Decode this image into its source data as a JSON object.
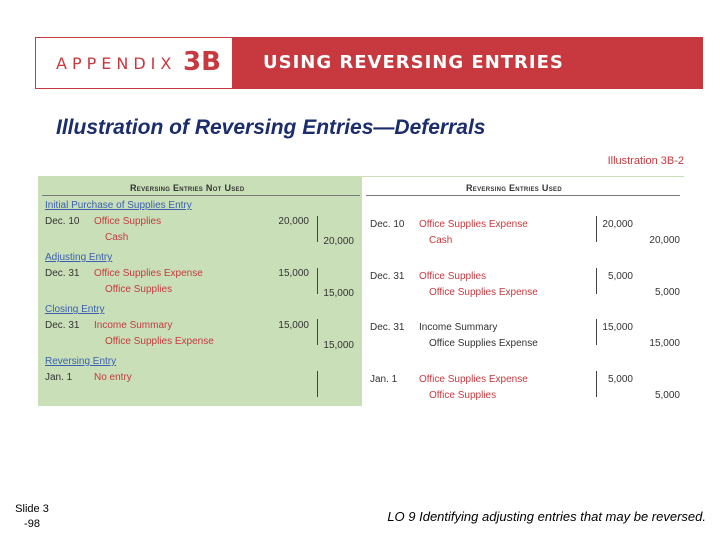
{
  "banner": {
    "appendix_word": "APPENDIX",
    "appendix_num": "3B",
    "title": "USING REVERSING ENTRIES"
  },
  "slide_title": "Illustration of Reversing Entries—Deferrals",
  "illustration_label": "Illustration 3B-2",
  "left": {
    "heading": "Reversing Entries Not Used",
    "sections": [
      {
        "label": "Initial Purchase of Supplies Entry",
        "rows": [
          {
            "date": "Dec. 10",
            "account": "Office Supplies",
            "debit": "20,000",
            "credit": ""
          },
          {
            "date": "",
            "account": "Cash",
            "debit": "",
            "credit": "20,000"
          }
        ]
      },
      {
        "label": "Adjusting Entry",
        "rows": [
          {
            "date": "Dec. 31",
            "account": "Office Supplies Expense",
            "debit": "15,000",
            "credit": ""
          },
          {
            "date": "",
            "account": "Office Supplies",
            "debit": "",
            "credit": "15,000"
          }
        ]
      },
      {
        "label": "Closing Entry",
        "rows": [
          {
            "date": "Dec. 31",
            "account": "Income Summary",
            "debit": "15,000",
            "credit": ""
          },
          {
            "date": "",
            "account": "Office Supplies Expense",
            "debit": "",
            "credit": "15,000"
          }
        ]
      },
      {
        "label": "Reversing Entry",
        "rows": [
          {
            "date": "Jan. 1",
            "account": "No entry",
            "debit": "",
            "credit": ""
          }
        ]
      }
    ]
  },
  "right": {
    "heading": "Reversing Entries Used",
    "rows": [
      {
        "date": "Dec. 10",
        "account": "Office Supplies Expense",
        "debit": "20,000",
        "credit": ""
      },
      {
        "date": "",
        "account": "Cash",
        "debit": "",
        "credit": "20,000"
      },
      {
        "date": "Dec. 31",
        "account": "Office Supplies",
        "debit": "5,000",
        "credit": ""
      },
      {
        "date": "",
        "account": "Office Supplies Expense",
        "debit": "",
        "credit": "5,000"
      },
      {
        "date": "Dec. 31",
        "account": "Income Summary",
        "debit": "15,000",
        "credit": ""
      },
      {
        "date": "",
        "account": "Office Supplies Expense",
        "debit": "",
        "credit": "15,000"
      },
      {
        "date": "Jan. 1",
        "account": "Office Supplies Expense",
        "debit": "5,000",
        "credit": ""
      },
      {
        "date": "",
        "account": "Office Supplies",
        "debit": "",
        "credit": "5,000"
      }
    ]
  },
  "slide_number": {
    "line1": "Slide 3",
    "line2": "-98"
  },
  "footer": "LO 9  Identifying adjusting entries that may be reversed.",
  "colors": {
    "accent": "#c8393f",
    "title": "#1c2d6e",
    "panel": "#c9dfb8",
    "section": "#3a5fb0"
  }
}
